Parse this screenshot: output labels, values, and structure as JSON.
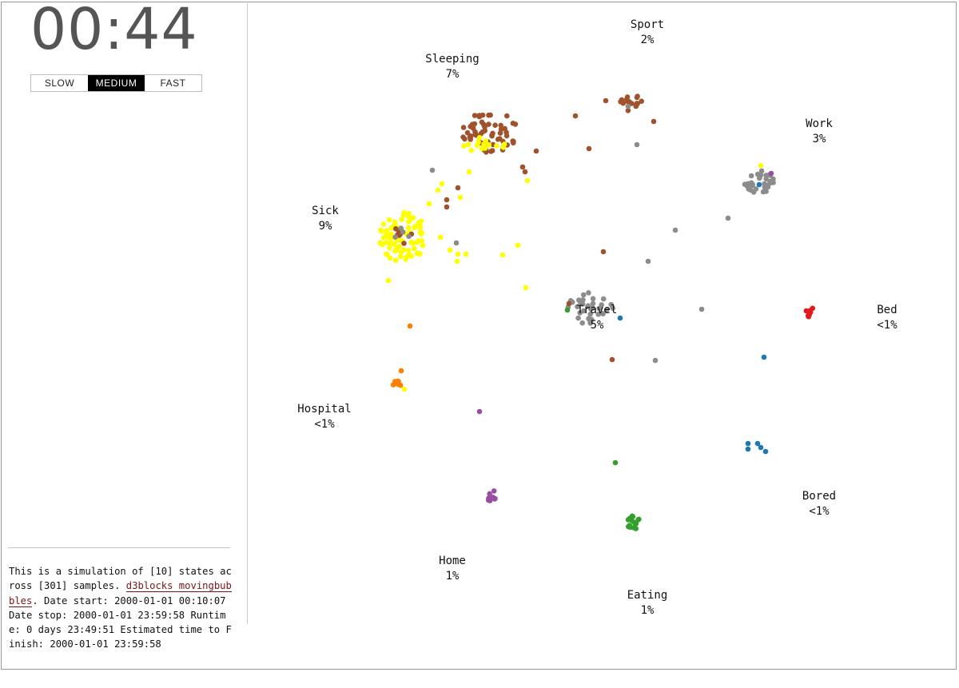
{
  "clock": {
    "time": "00:44"
  },
  "speed": {
    "options": [
      {
        "label": "SLOW",
        "active": false
      },
      {
        "label": "MEDIUM",
        "active": true
      },
      {
        "label": "FAST",
        "active": false
      }
    ]
  },
  "info": {
    "text_before": "This is a simulation of [10] states across [301] samples.",
    "link_text": "d3blocks movingbubbles",
    "text_after": ". Date start: 2000-01-01 00:10:07 Date stop: 2000-01-01 23:59:58 Runtime: 0 days 23:49:51 Estimated time to Finish: 2000-01-01 23:59:58"
  },
  "states": [
    {
      "name": "Sport",
      "percent": "2%",
      "color": "#a0522d"
    },
    {
      "name": "Sleeping",
      "percent": "7%",
      "color": "#a0522d"
    },
    {
      "name": "Work",
      "percent": "3%",
      "color": "#8c8c8c"
    },
    {
      "name": "Sick",
      "percent": "9%",
      "color": "#ffff00"
    },
    {
      "name": "Travel",
      "percent": "5%",
      "color": "#8c8c8c"
    },
    {
      "name": "Bed",
      "percent": "<1%",
      "color": "#e31a1c"
    },
    {
      "name": "Hospital",
      "percent": "<1%",
      "color": "#ff7f00"
    },
    {
      "name": "Bored",
      "percent": "<1%",
      "color": "#1f78b4"
    },
    {
      "name": "Home",
      "percent": "1%",
      "color": "#984ea3"
    },
    {
      "name": "Eating",
      "percent": "1%",
      "color": "#33a02c"
    }
  ]
}
